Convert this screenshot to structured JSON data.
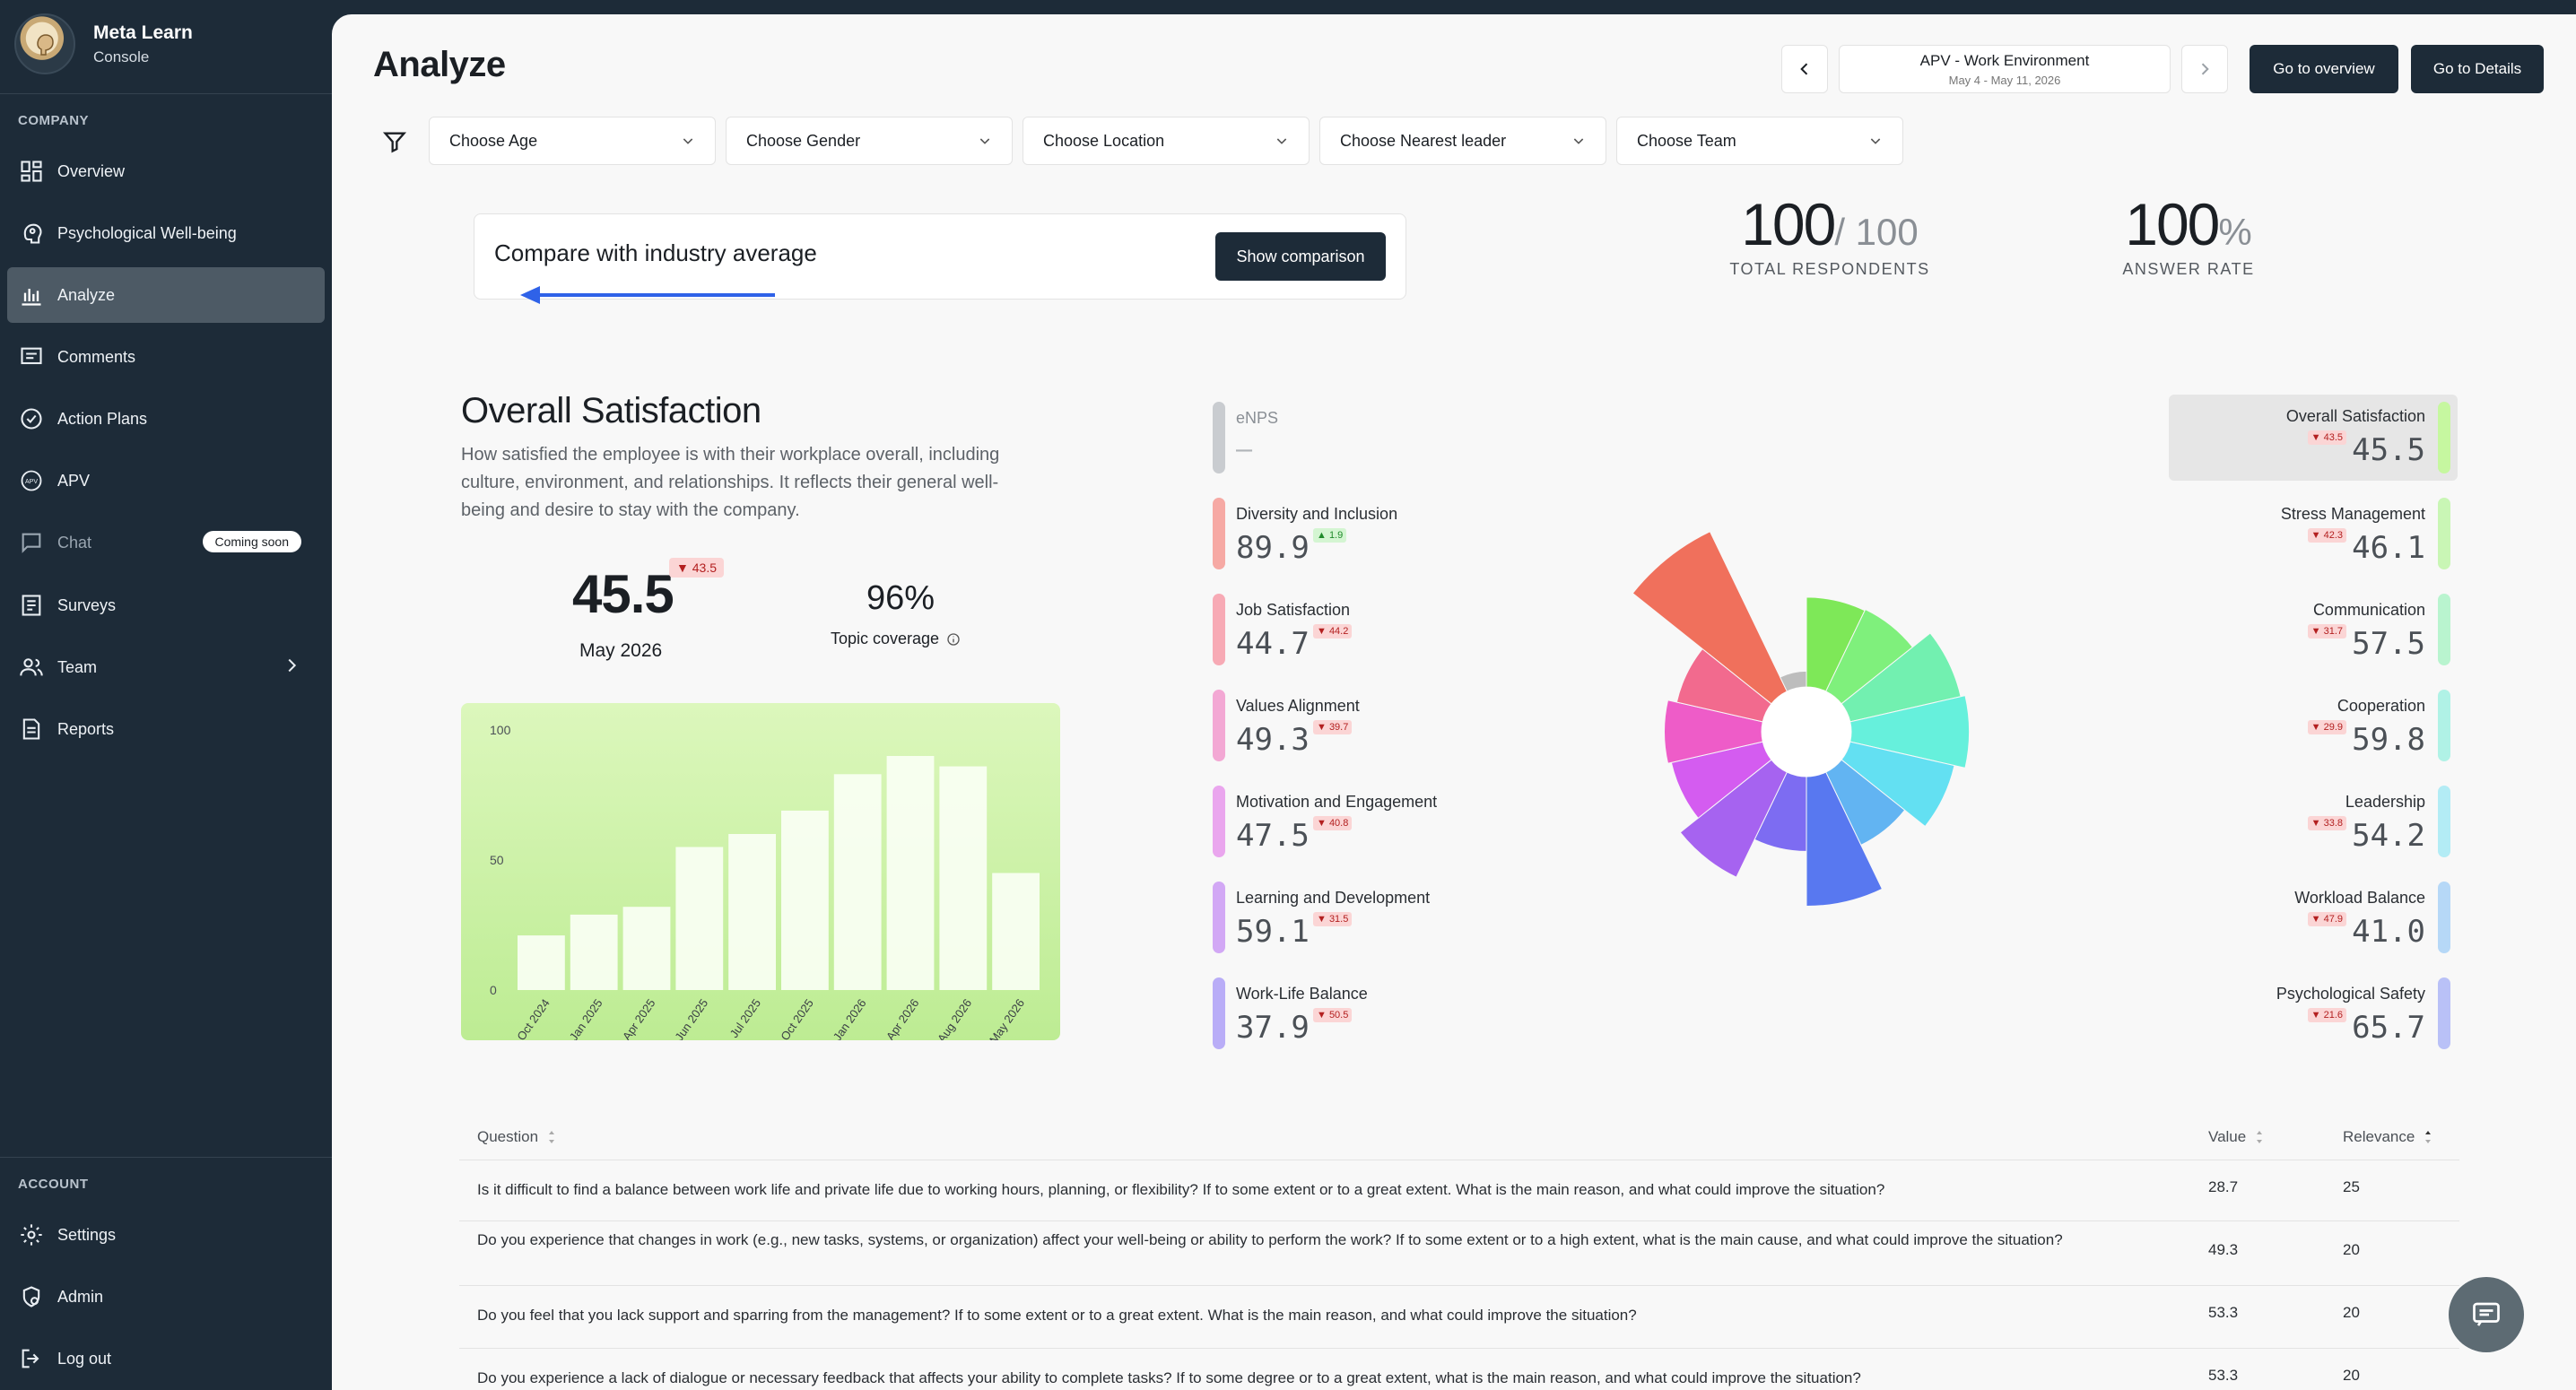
{
  "brand": {
    "name": "Meta Learn",
    "sub": "Console"
  },
  "sidebar": {
    "section_company": "COMPANY",
    "section_account": "ACCOUNT",
    "items": [
      {
        "label": "Overview",
        "icon": "dashboard-icon"
      },
      {
        "label": "Psychological Well-being",
        "icon": "head-icon"
      },
      {
        "label": "Analyze",
        "icon": "bar-chart-icon",
        "active": true
      },
      {
        "label": "Comments",
        "icon": "comment-icon"
      },
      {
        "label": "Action Plans",
        "icon": "check-circle-icon"
      },
      {
        "label": "APV",
        "icon": "apv-icon"
      },
      {
        "label": "Chat",
        "icon": "chat-icon",
        "badge": "Coming soon"
      },
      {
        "label": "Surveys",
        "icon": "survey-icon"
      },
      {
        "label": "Team",
        "icon": "team-icon"
      },
      {
        "label": "Reports",
        "icon": "report-icon"
      }
    ],
    "account_items": [
      {
        "label": "Settings",
        "icon": "gear-icon"
      },
      {
        "label": "Admin",
        "icon": "admin-icon"
      },
      {
        "label": "Log out",
        "icon": "logout-icon"
      }
    ]
  },
  "header": {
    "title": "Analyze",
    "period_title": "APV - Work Environment",
    "period_dates": "May 4 - May 11, 2026",
    "overview_btn": "Go to overview",
    "details_btn": "Go to Details"
  },
  "filters": [
    "Choose Age",
    "Choose Gender",
    "Choose Location",
    "Choose Nearest leader",
    "Choose Team"
  ],
  "compare": {
    "text": "Compare with industry average",
    "button": "Show comparison"
  },
  "kpis": {
    "respondents_value": "100",
    "respondents_total": "/ 100",
    "respondents_label": "TOTAL RESPONDENTS",
    "answer_rate_value": "100",
    "answer_rate_unit": "%",
    "answer_rate_label": "ANSWER RATE"
  },
  "overall": {
    "title": "Overall Satisfaction",
    "description": "How satisfied the employee is with their workplace overall, including culture, environment, and relationships. It reflects their general well-being and desire to stay with the company.",
    "score": "45.5",
    "badge": "▼ 43.5",
    "date": "May 2026",
    "coverage": "96%",
    "coverage_label": "Topic coverage"
  },
  "chart_data": {
    "type": "bar",
    "categories": [
      "Oct 2024",
      "Jan 2025",
      "Apr 2025",
      "Jun 2025",
      "Jul 2025",
      "Oct 2025",
      "Jan 2026",
      "Apr 2026",
      "Aug 2026",
      "May 2026"
    ],
    "values": [
      21,
      29,
      32,
      55,
      60,
      69,
      83,
      90,
      86,
      45
    ],
    "ylim": [
      0,
      100
    ],
    "yticks": [
      "0",
      "50",
      "100"
    ],
    "color": "#fafff4"
  },
  "topics_left": [
    {
      "name": "eNPS",
      "value": "—",
      "badge": "",
      "dir": "none",
      "color": "#c9ccd0"
    },
    {
      "name": "Diversity and Inclusion",
      "value": "89.9",
      "badge": "▲ 1.9",
      "dir": "up",
      "color": "#f6a9a4"
    },
    {
      "name": "Job Satisfaction",
      "value": "44.7",
      "badge": "▼ 44.2",
      "dir": "down",
      "color": "#f7aab5"
    },
    {
      "name": "Values Alignment",
      "value": "49.3",
      "badge": "▼ 39.7",
      "dir": "down",
      "color": "#f3a8d4"
    },
    {
      "name": "Motivation and Engagement",
      "value": "47.5",
      "badge": "▼ 40.8",
      "dir": "down",
      "color": "#eaa6ee"
    },
    {
      "name": "Learning and Development",
      "value": "59.1",
      "badge": "▼ 31.5",
      "dir": "down",
      "color": "#d2a8f5"
    },
    {
      "name": "Work-Life Balance",
      "value": "37.9",
      "badge": "▼ 50.5",
      "dir": "down",
      "color": "#b9adf7"
    }
  ],
  "topics_right": [
    {
      "name": "Overall Satisfaction",
      "value": "45.5",
      "badge": "▼ 43.5",
      "dir": "down",
      "color": "#c6f7a0",
      "highlight": true
    },
    {
      "name": "Stress Management",
      "value": "46.1",
      "badge": "▼ 42.3",
      "dir": "down",
      "color": "#c9f6b5"
    },
    {
      "name": "Communication",
      "value": "57.5",
      "badge": "▼ 31.7",
      "dir": "down",
      "color": "#b9f4cf"
    },
    {
      "name": "Cooperation",
      "value": "59.8",
      "badge": "▼ 29.9",
      "dir": "down",
      "color": "#b0f2e6"
    },
    {
      "name": "Leadership",
      "value": "54.2",
      "badge": "▼ 33.8",
      "dir": "down",
      "color": "#b3ecf5"
    },
    {
      "name": "Workload Balance",
      "value": "41.0",
      "badge": "▼ 47.9",
      "dir": "down",
      "color": "#b6d8f7"
    },
    {
      "name": "Psychological Safety",
      "value": "65.7",
      "badge": "▼ 21.6",
      "dir": "down",
      "color": "#b9c1f7"
    }
  ],
  "polar_segments": [
    {
      "value": 45.5,
      "color": "#7ee858"
    },
    {
      "value": 46.1,
      "color": "#7ff07c"
    },
    {
      "value": 57.5,
      "color": "#72f0b0"
    },
    {
      "value": 59.8,
      "color": "#66f0dc"
    },
    {
      "value": 54.2,
      "color": "#63e0f2"
    },
    {
      "value": 41.0,
      "color": "#62b4f2"
    },
    {
      "value": 65.7,
      "color": "#5878f0"
    },
    {
      "value": 37.9,
      "color": "#7d6cf2"
    },
    {
      "value": 59.1,
      "color": "#a663f0"
    },
    {
      "value": 47.5,
      "color": "#d45cf0"
    },
    {
      "value": 49.3,
      "color": "#ee5cc8"
    },
    {
      "value": 44.7,
      "color": "#f26a8e"
    },
    {
      "value": 89.9,
      "color": "#f0705c"
    },
    {
      "value": 8,
      "color": "#bdbdbd"
    }
  ],
  "table": {
    "headers": {
      "question": "Question",
      "value": "Value",
      "relevance": "Relevance"
    },
    "rows": [
      {
        "question": "Is it difficult to find a balance between work life and private life due to working hours, planning, or flexibility? If to some extent or to a great extent. What is the main reason, and what could improve the situation?",
        "value": "28.7",
        "relevance": "25"
      },
      {
        "question": "Do you experience that changes in work (e.g., new tasks, systems, or organization) affect your well-being or ability to perform the work? If to some extent or to a high extent, what is the main cause, and what could improve the situation?",
        "value": "49.3",
        "relevance": "20"
      },
      {
        "question": "Do you feel that you lack support and sparring from the management? If to some extent or to a great extent. What is the main reason, and what could improve the situation?",
        "value": "53.3",
        "relevance": "20"
      },
      {
        "question": "Do you experience a lack of dialogue or necessary feedback that affects your ability to complete tasks? If to some degree or to a great extent, what is the main reason, and what could improve the situation?",
        "value": "53.3",
        "relevance": "20"
      }
    ]
  }
}
